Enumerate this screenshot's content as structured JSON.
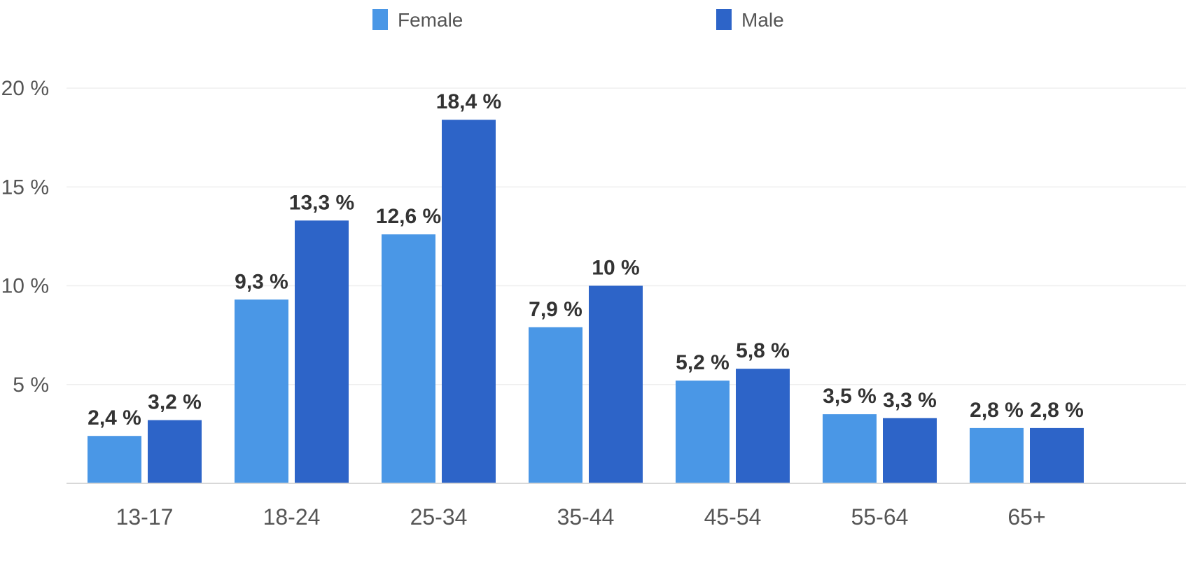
{
  "chart_data": {
    "type": "bar",
    "categories": [
      "13-17",
      "18-24",
      "25-34",
      "35-44",
      "45-54",
      "55-64",
      "65+"
    ],
    "series": [
      {
        "name": "Female",
        "color": "#4a97e6",
        "values": [
          2.4,
          9.3,
          12.6,
          7.9,
          5.2,
          3.5,
          2.8
        ],
        "labels": [
          "2,4 %",
          "9,3 %",
          "12,6 %",
          "7,9 %",
          "5,2 %",
          "3,5 %",
          "2,8 %"
        ]
      },
      {
        "name": "Male",
        "color": "#2d64c8",
        "values": [
          3.2,
          13.3,
          18.4,
          10,
          5.8,
          3.3,
          2.8
        ],
        "labels": [
          "3,2 %",
          "13,3 %",
          "18,4 %",
          "10 %",
          "5,8 %",
          "3,3 %",
          "2,8 %"
        ]
      }
    ],
    "yticks": [
      5,
      10,
      15,
      20
    ],
    "ytick_labels": [
      "5 %",
      "10 %",
      "15 %",
      "20 %"
    ],
    "ylim": [
      0,
      20
    ],
    "grid": true,
    "legend": "top-center"
  }
}
